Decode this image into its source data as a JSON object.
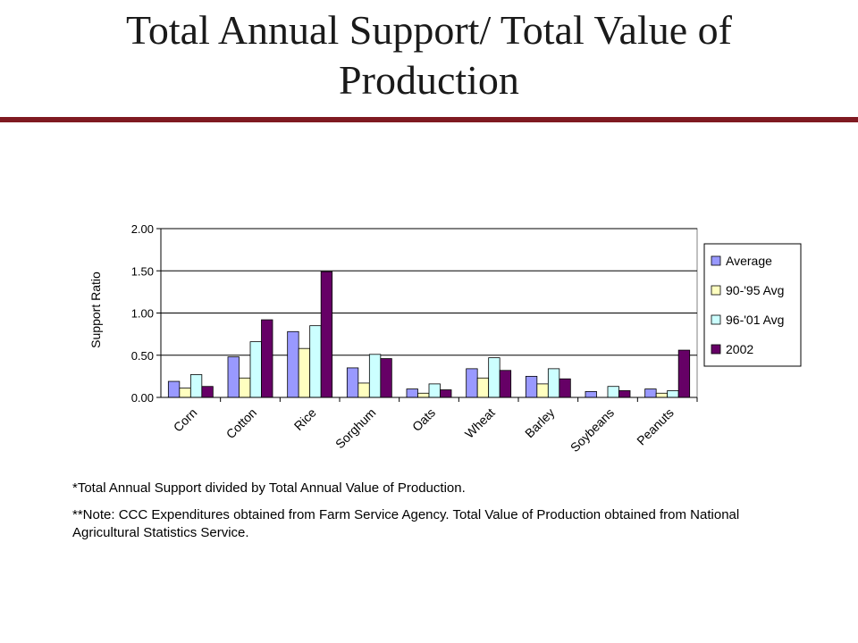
{
  "slide": {
    "title": "Total Annual Support/ Total Value of Production",
    "accent_color": "#7f1a21"
  },
  "chart_data": {
    "type": "bar",
    "title": "",
    "xlabel": "",
    "ylabel": "Support Ratio",
    "ylim": [
      0,
      2
    ],
    "yticks": [
      0,
      0.5,
      1,
      1.5,
      2
    ],
    "ytick_labels": [
      "0.00",
      "0.50",
      "1.00",
      "1.50",
      "2.00"
    ],
    "categories": [
      "Corn",
      "Cotton",
      "Rice",
      "Sorghum",
      "Oats",
      "Wheat",
      "Barley",
      "Soybeans",
      "Peanuts"
    ],
    "series": [
      {
        "name": "Average",
        "color": "#9999ff",
        "values": [
          0.19,
          0.48,
          0.78,
          0.35,
          0.1,
          0.34,
          0.25,
          0.07,
          0.1
        ]
      },
      {
        "name": "90-'95 Avg",
        "color": "#ffffc0",
        "values": [
          0.11,
          0.23,
          0.58,
          0.17,
          0.05,
          0.23,
          0.16,
          0.0,
          0.05
        ]
      },
      {
        "name": "96-'01 Avg",
        "color": "#ccffff",
        "values": [
          0.27,
          0.66,
          0.85,
          0.51,
          0.16,
          0.47,
          0.34,
          0.13,
          0.08
        ]
      },
      {
        "name": "2002",
        "color": "#660066",
        "values": [
          0.13,
          0.92,
          1.49,
          0.46,
          0.09,
          0.32,
          0.22,
          0.08,
          0.56
        ]
      }
    ],
    "grid": true,
    "legend_position": "right"
  },
  "notes": {
    "footnote_1": "*Total Annual Support divided by Total Annual Value of Production.",
    "footnote_2": "**Note:  CCC Expenditures obtained from Farm Service Agency.  Total Value of Production obtained from National Agricultural Statistics Service."
  }
}
